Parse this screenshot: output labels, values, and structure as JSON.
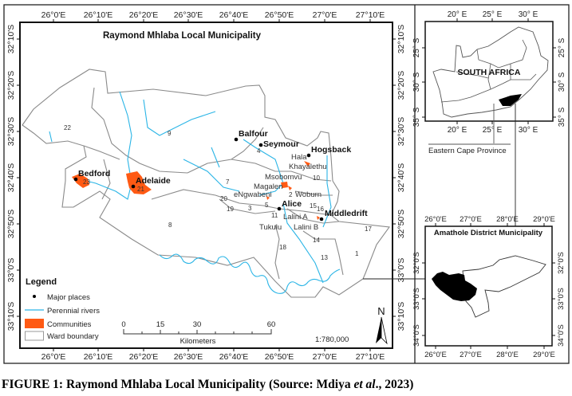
{
  "main_map": {
    "title": "Raymond Mhlaba Local Municipality",
    "lon_ticks": [
      "26°0'E",
      "26°10'E",
      "26°20'E",
      "26°30'E",
      "26°40'E",
      "26°50'E",
      "27°0'E",
      "27°10'E"
    ],
    "lat_ticks": [
      "32°10'S",
      "32°20'S",
      "32°30'S",
      "32°40'S",
      "32°50'S",
      "33°0'S",
      "33°10'S"
    ],
    "wards": [
      "22",
      "9",
      "7",
      "8",
      "18",
      "13",
      "1",
      "17",
      "14",
      "10",
      "23",
      "21",
      "20",
      "19",
      "3",
      "5",
      "2",
      "15",
      "16",
      "4",
      "11"
    ],
    "major_places": [
      "Balfour",
      "Seymour",
      "Hogsback",
      "Bedford",
      "Adelaide",
      "Alice",
      "Middledrift"
    ],
    "communities": [
      "Hala",
      "Khayalethu",
      "Msobomvu",
      "Magalen",
      "Woburn",
      "eNgwabeni",
      "Lalini A",
      "Lalini B",
      "Tukulu"
    ],
    "legend": {
      "title": "Legend",
      "items": [
        "Major places",
        "Perennial rivers",
        "Communities",
        "Ward boundary"
      ]
    },
    "scale_bar": {
      "ticks": [
        "0",
        "15",
        "30",
        "60"
      ],
      "unit": "Kilometers"
    },
    "scale_ratio": "1:780,000",
    "north_label": "N",
    "colors": {
      "community": "#ff5a14",
      "river": "#2bb5e6",
      "ward_boundary": "#8a8a8a"
    }
  },
  "inset_country": {
    "label": "SOUTH AFRICA",
    "lon_ticks": [
      "20° E",
      "25° E",
      "30° E"
    ],
    "lat_ticks": [
      "25° S",
      "30° S",
      "35° S"
    ],
    "province_label": "Eastern Cape Province"
  },
  "inset_district": {
    "title": "Amathole District Municipality",
    "lon_ticks": [
      "26°0'E",
      "27°0'E",
      "28°0'E",
      "29°0'E"
    ],
    "lat_ticks": [
      "32°0'S",
      "33°0'S",
      "34°0'S"
    ]
  },
  "caption": {
    "prefix": "FIGURE 1: Raymond Mhlaba Local Municipality (Source: Mdiya ",
    "italic": "et al",
    "suffix": "., 2023)"
  }
}
